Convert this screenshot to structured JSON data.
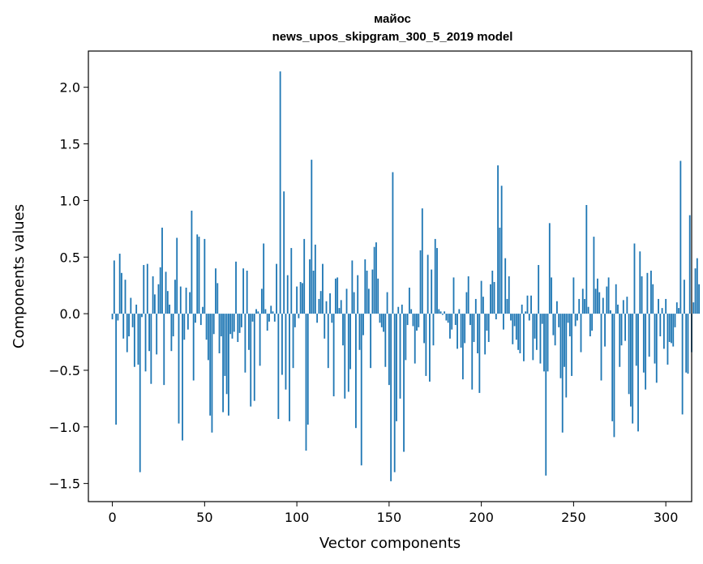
{
  "chart_data": {
    "type": "bar",
    "title_line1": "майос",
    "title_line2": "news_upos_skipgram_300_5_2019 model",
    "xlabel": "Vector components",
    "ylabel": "Components values",
    "xlim": [
      -13,
      314
    ],
    "ylim": [
      -1.66,
      2.32
    ],
    "xticks": [
      0,
      50,
      100,
      150,
      200,
      250,
      300
    ],
    "xtick_labels": [
      "0",
      "50",
      "100",
      "150",
      "200",
      "250",
      "300"
    ],
    "yticks": [
      -1.5,
      -1.0,
      -0.5,
      0.0,
      0.5,
      1.0,
      1.5,
      2.0
    ],
    "ytick_labels": [
      "−1.5",
      "−1.0",
      "−0.5",
      "0.0",
      "0.5",
      "1.0",
      "1.5",
      "2.0"
    ],
    "bar_color": "#1f77b4",
    "values": [
      -0.05,
      0.47,
      -0.98,
      -0.06,
      0.53,
      0.36,
      -0.22,
      0.3,
      -0.34,
      -0.2,
      0.14,
      -0.12,
      -0.47,
      0.08,
      -0.45,
      -1.4,
      -0.03,
      0.43,
      -0.51,
      0.44,
      -0.33,
      -0.62,
      0.33,
      0.17,
      -0.36,
      0.26,
      0.41,
      0.76,
      -0.63,
      0.37,
      0.2,
      0.08,
      -0.33,
      -0.2,
      0.3,
      0.67,
      -0.97,
      0.24,
      -1.12,
      -0.23,
      0.23,
      -0.14,
      0.19,
      0.91,
      -0.59,
      -0.08,
      0.7,
      0.68,
      -0.1,
      0.06,
      0.66,
      -0.23,
      -0.41,
      -0.9,
      -1.05,
      -0.18,
      0.4,
      0.27,
      -0.35,
      -0.2,
      -0.87,
      -0.55,
      -0.71,
      -0.9,
      -0.18,
      -0.22,
      -0.16,
      0.46,
      -0.25,
      -0.17,
      -0.12,
      0.4,
      -0.52,
      0.38,
      -0.32,
      -0.82,
      -0.07,
      -0.77,
      0.04,
      0.02,
      -0.46,
      0.22,
      0.62,
      0.04,
      -0.15,
      -0.07,
      0.07,
      0.02,
      -0.07,
      0.44,
      -0.93,
      2.14,
      -0.54,
      1.08,
      -0.67,
      0.34,
      -0.95,
      0.58,
      -0.48,
      -0.12,
      0.24,
      -0.04,
      0.28,
      0.27,
      0.66,
      -1.21,
      -0.98,
      0.48,
      1.36,
      0.38,
      0.61,
      -0.08,
      0.13,
      0.2,
      0.44,
      -0.22,
      0.11,
      -0.48,
      0.18,
      -0.08,
      -0.73,
      0.31,
      0.32,
      0.05,
      0.12,
      -0.28,
      -0.75,
      0.22,
      -0.69,
      -0.49,
      0.47,
      0.19,
      -1.01,
      0.34,
      -0.32,
      -1.34,
      -0.19,
      0.48,
      0.38,
      0.22,
      -0.48,
      0.39,
      0.59,
      0.63,
      0.31,
      -0.08,
      -0.12,
      -0.16,
      -0.47,
      0.19,
      -0.63,
      -1.48,
      1.25,
      -1.4,
      -0.95,
      0.06,
      -0.75,
      0.08,
      -1.22,
      -0.41,
      -0.1,
      0.23,
      0.04,
      -0.11,
      -0.44,
      -0.15,
      -0.12,
      0.56,
      0.93,
      -0.26,
      -0.55,
      0.52,
      -0.6,
      0.39,
      -0.28,
      0.66,
      0.58,
      0.04,
      0.02,
      -0.01,
      0.02,
      -0.06,
      -0.08,
      -0.22,
      -0.14,
      0.32,
      -0.1,
      -0.31,
      0.04,
      -0.3,
      -0.58,
      -0.26,
      0.19,
      0.33,
      -0.1,
      -0.67,
      -0.25,
      0.13,
      -0.35,
      -0.7,
      0.29,
      0.15,
      -0.36,
      -0.15,
      -0.25,
      0.26,
      0.38,
      0.28,
      -0.05,
      1.31,
      0.76,
      1.13,
      -0.14,
      0.49,
      0.13,
      0.33,
      -0.06,
      -0.27,
      -0.11,
      -0.23,
      -0.32,
      -0.35,
      0.08,
      -0.42,
      0.02,
      0.16,
      -0.06,
      0.16,
      -0.41,
      -0.22,
      -0.32,
      0.43,
      -0.44,
      -0.09,
      -0.51,
      -1.43,
      -0.51,
      0.8,
      0.32,
      -0.19,
      -0.28,
      0.11,
      -0.12,
      -0.57,
      -1.05,
      -0.47,
      -0.74,
      -0.08,
      -0.2,
      -0.55,
      0.32,
      -0.11,
      -0.06,
      0.13,
      -0.34,
      0.22,
      0.13,
      0.96,
      0.06,
      -0.2,
      -0.15,
      0.68,
      0.22,
      0.31,
      0.19,
      -0.59,
      0.14,
      -0.29,
      0.24,
      0.32,
      0.03,
      -0.95,
      -1.09,
      0.26,
      0.08,
      -0.47,
      -0.28,
      0.12,
      -0.24,
      0.15,
      -0.71,
      -0.82,
      -0.97,
      0.62,
      -0.46,
      -1.04,
      0.55,
      0.33,
      -0.52,
      -0.67,
      0.36,
      -0.38,
      0.38,
      0.26,
      -0.44,
      -0.61,
      0.13,
      -0.2,
      0.05,
      -0.31,
      0.13,
      -0.45,
      -0.25,
      -0.26,
      -0.29,
      -0.12,
      0.1,
      0.05,
      1.35,
      -0.89,
      0.3,
      -0.52,
      -0.53,
      0.87,
      -0.34,
      0.1,
      0.4,
      0.49,
      0.26
    ]
  }
}
